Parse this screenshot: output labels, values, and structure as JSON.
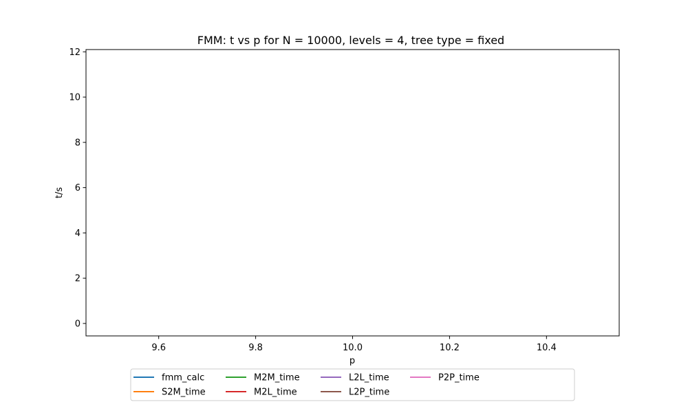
{
  "chart_data": {
    "type": "line",
    "title": "FMM: t vs p for N = 10000, levels = 4, tree type = fixed",
    "xlabel": "p",
    "ylabel": "t/s",
    "xlim": [
      9.45,
      10.55
    ],
    "ylim": [
      -0.55,
      12.1
    ],
    "xticks": [
      "9.6",
      "9.8",
      "10.0",
      "10.2",
      "10.4"
    ],
    "yticks": [
      "0",
      "2",
      "4",
      "6",
      "8",
      "10",
      "12"
    ],
    "grid": false,
    "legend_placement": "bottom-center",
    "series": [
      {
        "name": "fmm_calc",
        "color": "#1f77b4",
        "x": [
          10
        ],
        "y": [
          null
        ]
      },
      {
        "name": "S2M_time",
        "color": "#ff7f0e",
        "x": [
          10
        ],
        "y": [
          null
        ]
      },
      {
        "name": "M2M_time",
        "color": "#2ca02c",
        "x": [
          10
        ],
        "y": [
          null
        ]
      },
      {
        "name": "M2L_time",
        "color": "#d62728",
        "x": [
          10
        ],
        "y": [
          null
        ]
      },
      {
        "name": "L2L_time",
        "color": "#9467bd",
        "x": [
          10
        ],
        "y": [
          null
        ]
      },
      {
        "name": "L2P_time",
        "color": "#8c564b",
        "x": [
          10
        ],
        "y": [
          null
        ]
      },
      {
        "name": "P2P_time",
        "color": "#e377c2",
        "x": [
          10
        ],
        "y": [
          null
        ]
      }
    ]
  }
}
